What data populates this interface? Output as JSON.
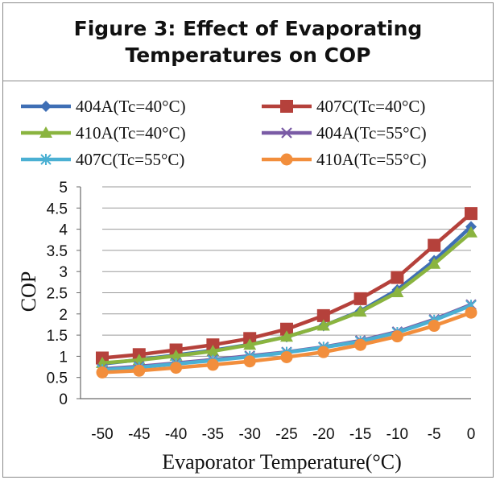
{
  "figure": {
    "title_lines": [
      "Figure 3: Effect of Evaporating",
      "Temperatures on COP"
    ]
  },
  "chart_data": {
    "type": "line",
    "title": "",
    "xlabel": "Evaporator Temperature(°C)",
    "ylabel": "COP",
    "x": [
      -50,
      -45,
      -40,
      -35,
      -30,
      -25,
      -20,
      -15,
      -10,
      -5,
      0
    ],
    "x_tick_labels": [
      "-50",
      "-45",
      "-40",
      "-35",
      "-30",
      "-25",
      "-20",
      "-15",
      "-10",
      "-5",
      "0"
    ],
    "ylim": [
      0,
      5
    ],
    "y_ticks": [
      0,
      0.5,
      1,
      1.5,
      2,
      2.5,
      3,
      3.5,
      4,
      4.5,
      5
    ],
    "y_tick_labels": [
      "0",
      "0.5",
      "1",
      "1.5",
      "2",
      "2.5",
      "3",
      "3.5",
      "4",
      "4.5",
      "5"
    ],
    "grid": "horizontal",
    "legend_position": "top",
    "series": [
      {
        "name": "404A(Tc=40°C)",
        "color": "#3f6fb5",
        "marker": "diamond",
        "values": [
          0.82,
          0.92,
          1.03,
          1.14,
          1.28,
          1.46,
          1.72,
          2.07,
          2.57,
          3.26,
          4.06
        ]
      },
      {
        "name": "407C(Tc=40°C)",
        "color": "#b5413b",
        "marker": "square",
        "values": [
          0.96,
          1.04,
          1.15,
          1.27,
          1.42,
          1.64,
          1.96,
          2.36,
          2.86,
          3.62,
          4.37
        ]
      },
      {
        "name": "410A(Tc=40°C)",
        "color": "#8ab43f",
        "marker": "triangle",
        "values": [
          0.84,
          0.91,
          1.01,
          1.12,
          1.27,
          1.46,
          1.72,
          2.05,
          2.51,
          3.18,
          3.92
        ]
      },
      {
        "name": "404A(Tc=55°C)",
        "color": "#7a5ba5",
        "marker": "x",
        "values": [
          0.7,
          0.76,
          0.84,
          0.92,
          1.01,
          1.1,
          1.22,
          1.37,
          1.58,
          1.87,
          2.22
        ]
      },
      {
        "name": "407C(Tc=55°C)",
        "color": "#4bb0d3",
        "marker": "star",
        "values": [
          0.68,
          0.74,
          0.82,
          0.9,
          0.99,
          1.09,
          1.21,
          1.35,
          1.56,
          1.85,
          2.2
        ]
      },
      {
        "name": "410A(Tc=55°C)",
        "color": "#f28e3c",
        "marker": "circle",
        "values": [
          0.62,
          0.66,
          0.73,
          0.8,
          0.88,
          0.98,
          1.1,
          1.27,
          1.47,
          1.72,
          2.03
        ]
      }
    ]
  }
}
